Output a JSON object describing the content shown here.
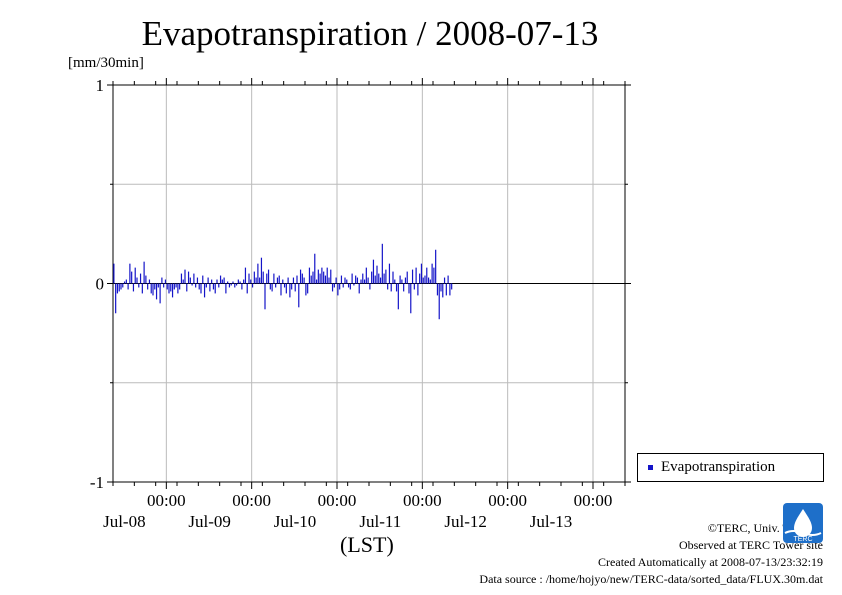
{
  "title": "Evapotranspiration / 2008-07-13",
  "unit_label": "[mm/30min]",
  "x_unit_label": "(LST)",
  "legend_label": "Evapotranspiration",
  "credits": {
    "line1": "©TERC, Univ. Tsukuba",
    "line2": "Observed at TERC Tower site",
    "line3": "Created Automatically at 2008-07-13/23:32:19",
    "line4": "Data source : /home/hojyo/new/TERC-data/sorted_data/FLUX.30m.dat"
  },
  "logo_text": "TERC",
  "colors": {
    "series": "#1414c8",
    "grid": "#bbbbbb",
    "logo": "#1e6fc9"
  },
  "chart_data": {
    "type": "bar",
    "ylim": [
      -1,
      1
    ],
    "yticks": [
      -1,
      0,
      1
    ],
    "ytick_labels": [
      "-1",
      "0",
      "1"
    ],
    "grid": true,
    "legend_position": "bottom-right, outside plot",
    "xlim": [
      "2008-07-07T09:00",
      "2008-07-13T09:00"
    ],
    "xticks": [
      "2008-07-08T00:00",
      "2008-07-09T00:00",
      "2008-07-10T00:00",
      "2008-07-11T00:00",
      "2008-07-12T00:00",
      "2008-07-13T00:00"
    ],
    "xtick_time_label": "00:00",
    "xtick_date_labels": [
      "Jul-08",
      "Jul-09",
      "Jul-10",
      "Jul-11",
      "Jul-12",
      "Jul-13"
    ],
    "x_start": "2008-07-07T09:00",
    "x_step_minutes": 30,
    "series": [
      {
        "name": "Evapotranspiration",
        "values": [
          0.1,
          -0.15,
          -0.05,
          -0.04,
          -0.03,
          -0.02,
          0.01,
          0.02,
          -0.03,
          0.1,
          0.06,
          -0.04,
          0.08,
          0.03,
          -0.02,
          0.05,
          -0.05,
          0.11,
          0.04,
          -0.03,
          0.02,
          -0.05,
          -0.06,
          -0.03,
          -0.08,
          -0.02,
          -0.1,
          0.03,
          -0.02,
          0.02,
          -0.03,
          -0.05,
          -0.04,
          -0.07,
          -0.03,
          -0.02,
          -0.05,
          -0.03,
          0.05,
          0.02,
          0.07,
          -0.04,
          0.06,
          0.03,
          -0.01,
          0.05,
          -0.02,
          0.03,
          -0.03,
          -0.05,
          0.04,
          -0.07,
          -0.02,
          0.03,
          -0.04,
          0.02,
          -0.03,
          -0.05,
          0.02,
          -0.02,
          0.04,
          0.02,
          0.03,
          -0.05,
          0.01,
          -0.02,
          -0.01,
          0.01,
          -0.02,
          -0.01,
          0.02,
          0.01,
          -0.03,
          0.02,
          0.08,
          -0.05,
          0.05,
          0.02,
          -0.02,
          0.06,
          0.03,
          0.1,
          0.03,
          0.13,
          0.06,
          -0.13,
          0.05,
          0.07,
          -0.03,
          -0.04,
          0.05,
          -0.02,
          0.03,
          0.04,
          -0.06,
          0.02,
          -0.02,
          -0.05,
          0.03,
          -0.07,
          -0.03,
          0.03,
          -0.04,
          0.04,
          -0.12,
          0.07,
          0.05,
          0.03,
          -0.06,
          -0.05,
          0.08,
          0.04,
          0.06,
          0.15,
          0.02,
          0.07,
          0.05,
          0.08,
          0.06,
          0.04,
          0.08,
          0.03,
          0.07,
          -0.04,
          -0.02,
          0.03,
          -0.06,
          -0.03,
          0.04,
          -0.02,
          0.03,
          0.02,
          -0.02,
          -0.03,
          0.05,
          -0.01,
          0.04,
          0.03,
          -0.05,
          0.02,
          0.05,
          0.02,
          0.08,
          0.03,
          -0.03,
          0.06,
          0.12,
          0.04,
          0.09,
          0.05,
          0.03,
          0.2,
          0.05,
          0.07,
          -0.03,
          0.1,
          -0.04,
          0.06,
          0.02,
          -0.04,
          -0.13,
          0.04,
          0.02,
          -0.04,
          0.03,
          0.06,
          -0.05,
          -0.15,
          0.07,
          -0.03,
          0.08,
          -0.06,
          0.05,
          0.1,
          0.03,
          0.04,
          0.08,
          0.03,
          0.02,
          0.1,
          0.08,
          0.17,
          -0.06,
          -0.18,
          -0.04,
          -0.07,
          0.03,
          -0.06,
          0.04,
          -0.06,
          -0.03
        ]
      }
    ]
  }
}
